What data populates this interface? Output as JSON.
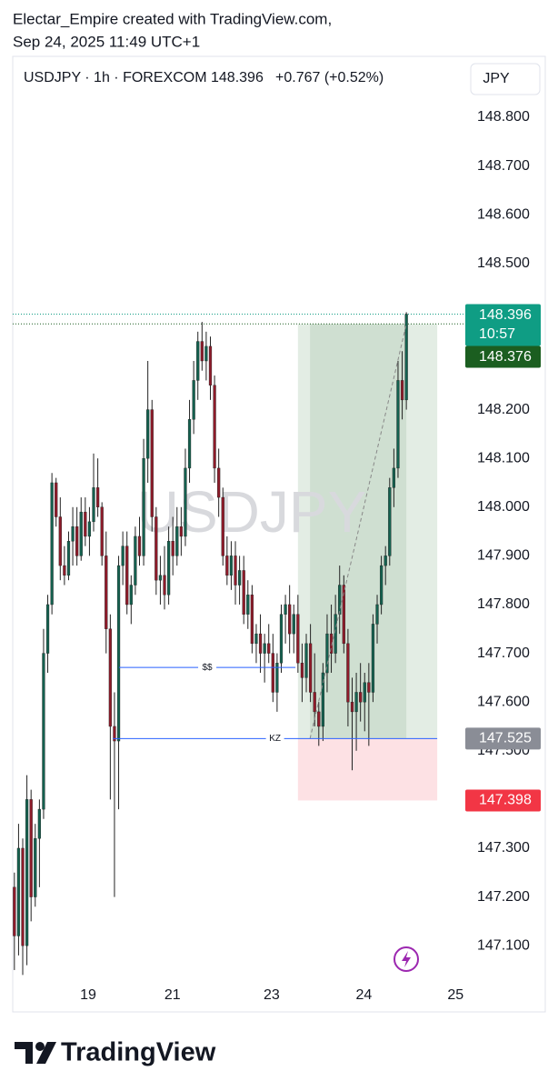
{
  "header": {
    "author_line": "Electar_Empire created with TradingView.com,",
    "timestamp": "Sep 24, 2025 11:49 UTC+1"
  },
  "footer": {
    "brand": "TradingView"
  },
  "chart_data": {
    "type": "candlestick",
    "title": "USDJPY · 1h · FOREXCOM",
    "last_price": "148.396",
    "change": "+0.767 (+0.52%)",
    "currency": "JPY",
    "watermark": "USDJPY",
    "up_color": "#14614f",
    "down_color": "#8e1b2a",
    "wick_color": "#222222",
    "open": [
      147.22,
      147.12,
      147.3,
      147.1,
      147.4,
      147.2,
      147.32,
      147.38,
      147.7,
      147.8,
      148.05,
      147.98,
      147.88,
      147.86,
      147.93,
      147.96,
      147.9,
      147.99,
      147.94,
      147.97,
      148.04,
      148.0,
      147.9,
      147.75,
      147.55,
      147.52,
      147.88,
      147.92,
      147.8,
      147.84,
      147.94,
      147.9,
      148.1,
      148.2,
      147.98,
      147.85,
      147.86,
      147.82,
      147.93,
      147.9,
      147.96,
      147.94,
      148.08,
      148.18,
      148.26,
      148.34,
      148.3,
      148.33,
      148.25,
      148.08,
      148.02,
      147.9,
      147.86,
      147.9,
      147.84,
      147.87,
      147.78,
      147.82,
      147.72,
      147.74,
      147.7,
      147.72,
      147.7,
      147.62,
      147.68,
      147.78,
      147.8,
      147.74,
      147.78,
      147.68,
      147.65,
      147.72,
      147.62,
      147.58,
      147.55,
      147.66,
      147.74,
      147.7,
      147.78,
      147.84,
      147.72,
      147.6,
      147.58,
      147.62,
      147.6,
      147.64,
      147.62,
      147.76,
      147.8,
      147.88,
      147.9,
      148.04,
      148.08,
      148.26,
      148.22
    ],
    "high": [
      147.25,
      147.35,
      147.32,
      147.45,
      147.42,
      147.35,
      147.4,
      147.75,
      147.82,
      148.07,
      148.06,
      148.02,
      147.92,
      147.95,
      148.0,
      148.0,
      148.02,
      148.02,
      148.0,
      148.11,
      148.1,
      148.01,
      147.95,
      147.78,
      147.62,
      147.9,
      147.95,
      147.95,
      147.86,
      147.96,
      147.98,
      148.14,
      148.3,
      148.22,
      148.0,
      147.9,
      147.92,
      147.96,
      147.98,
      148.0,
      148.0,
      148.12,
      148.22,
      148.3,
      148.36,
      148.38,
      148.36,
      148.35,
      148.27,
      148.12,
      148.04,
      147.94,
      147.93,
      147.93,
      147.9,
      147.9,
      147.85,
      147.84,
      147.76,
      147.78,
      147.74,
      147.76,
      147.74,
      147.7,
      147.8,
      147.82,
      147.84,
      147.8,
      147.82,
      147.72,
      147.74,
      147.76,
      147.7,
      147.6,
      147.68,
      147.78,
      147.8,
      147.82,
      147.88,
      147.86,
      147.75,
      147.65,
      147.66,
      147.68,
      147.66,
      147.68,
      147.78,
      147.82,
      147.9,
      147.92,
      148.06,
      148.12,
      148.3,
      148.32,
      148.4
    ],
    "low": [
      147.05,
      147.08,
      147.04,
      147.06,
      147.15,
      147.18,
      147.22,
      147.36,
      147.66,
      147.78,
      147.96,
      147.85,
      147.84,
      147.85,
      147.88,
      147.88,
      147.89,
      147.92,
      147.9,
      147.95,
      147.98,
      147.88,
      147.7,
      147.4,
      147.2,
      147.38,
      147.84,
      147.78,
      147.76,
      147.82,
      147.88,
      147.88,
      148.05,
      147.95,
      147.82,
      147.8,
      147.79,
      147.8,
      147.86,
      147.88,
      147.9,
      147.92,
      148.05,
      148.15,
      148.22,
      148.28,
      148.26,
      148.22,
      148.05,
      147.98,
      147.88,
      147.84,
      147.83,
      147.8,
      147.8,
      147.76,
      147.75,
      147.7,
      147.68,
      147.66,
      147.64,
      147.68,
      147.6,
      147.58,
      147.66,
      147.72,
      147.7,
      147.7,
      147.66,
      147.6,
      147.62,
      147.6,
      147.55,
      147.51,
      147.52,
      147.62,
      147.66,
      147.68,
      147.74,
      147.7,
      147.55,
      147.46,
      147.5,
      147.56,
      147.54,
      147.51,
      147.6,
      147.72,
      147.78,
      147.84,
      147.88,
      148.0,
      148.06,
      148.18,
      148.2
    ],
    "close": [
      147.12,
      147.3,
      147.1,
      147.4,
      147.2,
      147.32,
      147.38,
      147.7,
      147.8,
      148.05,
      147.98,
      147.88,
      147.86,
      147.93,
      147.96,
      147.9,
      147.99,
      147.94,
      147.97,
      148.04,
      148.0,
      147.9,
      147.75,
      147.55,
      147.52,
      147.88,
      147.92,
      147.8,
      147.84,
      147.94,
      147.9,
      148.1,
      148.2,
      147.98,
      147.85,
      147.86,
      147.82,
      147.93,
      147.9,
      147.96,
      147.94,
      148.08,
      148.18,
      148.26,
      148.34,
      148.3,
      148.33,
      148.25,
      148.08,
      148.02,
      147.9,
      147.86,
      147.9,
      147.84,
      147.87,
      147.78,
      147.82,
      147.72,
      147.74,
      147.7,
      147.72,
      147.7,
      147.62,
      147.68,
      147.78,
      147.8,
      147.74,
      147.78,
      147.68,
      147.65,
      147.72,
      147.62,
      147.58,
      147.55,
      147.66,
      147.74,
      147.7,
      147.78,
      147.84,
      147.72,
      147.6,
      147.58,
      147.62,
      147.6,
      147.64,
      147.62,
      147.76,
      147.8,
      147.88,
      147.9,
      148.04,
      148.08,
      148.26,
      148.22,
      148.396
    ],
    "xlim": [
      -0.4,
      107.7
    ],
    "xticks": [
      {
        "value": 17.7,
        "label": "19"
      },
      {
        "value": 37.9,
        "label": "21"
      },
      {
        "value": 61.7,
        "label": "23"
      },
      {
        "value": 83.8,
        "label": "24"
      },
      {
        "value": 105.8,
        "label": "25"
      }
    ],
    "ylim": [
      147.035,
      148.925
    ],
    "yticks": [
      {
        "value": 147.1,
        "label": "147.100"
      },
      {
        "value": 147.2,
        "label": "147.200"
      },
      {
        "value": 147.3,
        "label": "147.300"
      },
      {
        "value": 147.5,
        "label": "147.500"
      },
      {
        "value": 147.6,
        "label": "147.600"
      },
      {
        "value": 147.7,
        "label": "147.700"
      },
      {
        "value": 147.8,
        "label": "147.800"
      },
      {
        "value": 147.9,
        "label": "147.900"
      },
      {
        "value": 148.0,
        "label": "148.000"
      },
      {
        "value": 148.1,
        "label": "148.100"
      },
      {
        "value": 148.2,
        "label": "148.200"
      },
      {
        "value": 148.5,
        "label": "148.500"
      },
      {
        "value": 148.6,
        "label": "148.600"
      },
      {
        "value": 148.7,
        "label": "148.700"
      },
      {
        "value": 148.8,
        "label": "148.800"
      }
    ],
    "levels": [
      {
        "name": "$$",
        "value": 147.671,
        "x": [
          25.1,
          67.4
        ],
        "color": "#2962ff"
      },
      {
        "name": "KZ",
        "value": 147.525,
        "x": [
          23.6,
          101.4
        ],
        "color": "#2962ff"
      }
    ],
    "position": {
      "entry": 147.525,
      "target": 148.376,
      "stop": 147.398,
      "x": [
        68.0,
        101.4
      ],
      "entry_x": 70.9,
      "profit_color": "#e3ede4",
      "active_color": "#cfdfd1",
      "loss_color": "#fde1e4"
    },
    "price_tags": [
      {
        "value": 148.396,
        "label": "148.396",
        "countdown": "10:57",
        "color": "#0f9d84",
        "dotted": true
      },
      {
        "value": 148.376,
        "label": "148.376",
        "color": "#1b5e20",
        "dotted": true
      },
      {
        "value": 147.525,
        "label": "147.525",
        "color": "#8a8d96"
      },
      {
        "value": 147.398,
        "label": "147.398",
        "color": "#f23645"
      }
    ]
  }
}
